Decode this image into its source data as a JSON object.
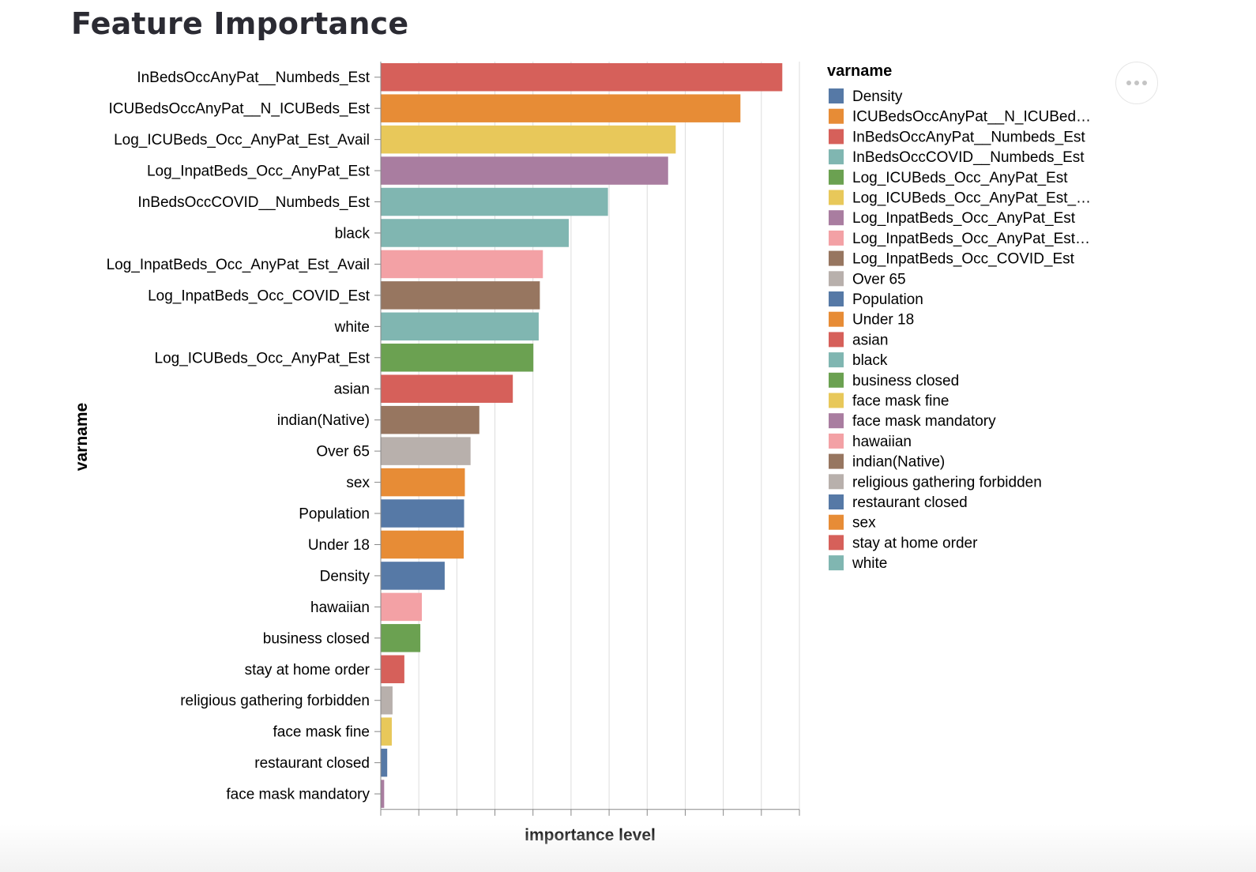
{
  "page": {
    "title": "Feature Importance"
  },
  "toolbar": {
    "more_icon": "more-horizontal-icon"
  },
  "chart_data": {
    "type": "bar",
    "orientation": "horizontal",
    "title": "Feature Importance",
    "xlabel": "importance level",
    "ylabel": "varname",
    "grid": true,
    "x_tick_labels_shown": false,
    "xlim": [
      0,
      0.11
    ],
    "x_tick_step": 0.01,
    "categories": [
      "InBedsOccAnyPat__Numbeds_Est",
      "ICUBedsOccAnyPat__N_ICUBeds_Est",
      "Log_ICUBeds_Occ_AnyPat_Est_Avail",
      "Log_InpatBeds_Occ_AnyPat_Est",
      "InBedsOccCOVID__Numbeds_Est",
      "black",
      "Log_InpatBeds_Occ_AnyPat_Est_Avail",
      "Log_InpatBeds_Occ_COVID_Est",
      "white",
      "Log_ICUBeds_Occ_AnyPat_Est",
      "asian",
      "indian(Native)",
      "Over 65",
      "sex",
      "Population",
      "Under 18",
      "Density",
      "hawaiian",
      "business closed",
      "stay at home order",
      "religious gathering forbidden",
      "face mask fine",
      "restaurant closed",
      "face mask mandatory"
    ],
    "values": [
      0.1055,
      0.0945,
      0.0775,
      0.0755,
      0.0597,
      0.0494,
      0.0426,
      0.0418,
      0.0415,
      0.0401,
      0.0347,
      0.0259,
      0.0236,
      0.0221,
      0.0219,
      0.0218,
      0.0168,
      0.0108,
      0.0104,
      0.0062,
      0.0031,
      0.0029,
      0.0017,
      0.0009
    ],
    "colors": [
      "#d6605a",
      "#e78c36",
      "#e8c85a",
      "#a97da0",
      "#80b6b1",
      "#80b6b1",
      "#f3a1a5",
      "#977660",
      "#80b6b1",
      "#6ba151",
      "#d6605a",
      "#977660",
      "#b8b0ac",
      "#e78c36",
      "#5679a6",
      "#e78c36",
      "#5679a6",
      "#f3a1a5",
      "#6ba151",
      "#d6605a",
      "#b8b0ac",
      "#e8c85a",
      "#5679a6",
      "#a97da0"
    ],
    "legend": {
      "title": "varname",
      "placement": "right",
      "items": [
        {
          "label": "Density",
          "color": "#5679a6"
        },
        {
          "label": "ICUBedsOccAnyPat__N_ICUBed…",
          "color": "#e78c36"
        },
        {
          "label": "InBedsOccAnyPat__Numbeds_Est",
          "color": "#d6605a"
        },
        {
          "label": "InBedsOccCOVID__Numbeds_Est",
          "color": "#80b6b1"
        },
        {
          "label": "Log_ICUBeds_Occ_AnyPat_Est",
          "color": "#6ba151"
        },
        {
          "label": "Log_ICUBeds_Occ_AnyPat_Est_…",
          "color": "#e8c85a"
        },
        {
          "label": "Log_InpatBeds_Occ_AnyPat_Est",
          "color": "#a97da0"
        },
        {
          "label": "Log_InpatBeds_Occ_AnyPat_Est…",
          "color": "#f3a1a5"
        },
        {
          "label": "Log_InpatBeds_Occ_COVID_Est",
          "color": "#977660"
        },
        {
          "label": "Over 65",
          "color": "#b8b0ac"
        },
        {
          "label": "Population",
          "color": "#5679a6"
        },
        {
          "label": "Under 18",
          "color": "#e78c36"
        },
        {
          "label": "asian",
          "color": "#d6605a"
        },
        {
          "label": "black",
          "color": "#80b6b1"
        },
        {
          "label": "business closed",
          "color": "#6ba151"
        },
        {
          "label": "face mask fine",
          "color": "#e8c85a"
        },
        {
          "label": "face mask mandatory",
          "color": "#a97da0"
        },
        {
          "label": "hawaiian",
          "color": "#f3a1a5"
        },
        {
          "label": "indian(Native)",
          "color": "#977660"
        },
        {
          "label": "religious gathering forbidden",
          "color": "#b8b0ac"
        },
        {
          "label": "restaurant closed",
          "color": "#5679a6"
        },
        {
          "label": "sex",
          "color": "#e78c36"
        },
        {
          "label": "stay at home order",
          "color": "#d6605a"
        },
        {
          "label": "white",
          "color": "#80b6b1"
        }
      ]
    }
  }
}
